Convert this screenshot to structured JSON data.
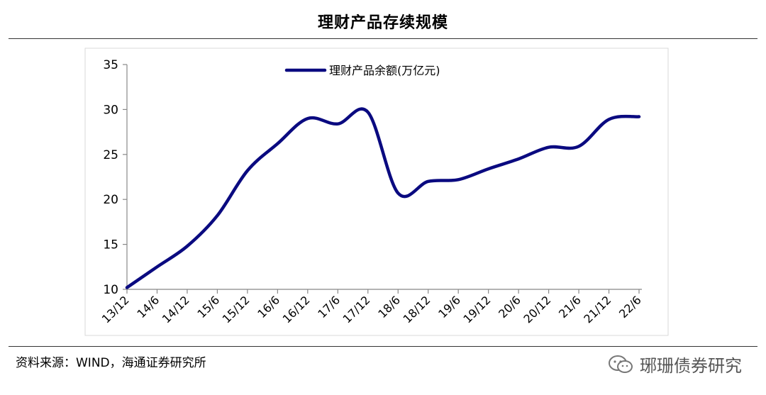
{
  "header": {
    "title": "理财产品存续规模"
  },
  "footer": {
    "source": "资料来源：WIND，海通证券研究所",
    "watermark": "琊珊债券研究"
  },
  "colors": {
    "series": "#0a0a80",
    "axis": "#888888"
  },
  "chart_data": {
    "type": "line",
    "title": "理财产品存续规模",
    "xlabel": "",
    "ylabel": "",
    "ylim": [
      10,
      35
    ],
    "yticks": [
      10,
      15,
      20,
      25,
      30,
      35
    ],
    "grid": false,
    "legend_position": "top-center",
    "categories": [
      "13/12",
      "14/6",
      "14/12",
      "15/6",
      "15/12",
      "16/6",
      "16/12",
      "17/6",
      "17/12",
      "18/6",
      "18/12",
      "19/6",
      "19/12",
      "20/6",
      "20/12",
      "21/6",
      "21/12",
      "22/6"
    ],
    "series": [
      {
        "name": "理财产品余额(万亿元)",
        "values": [
          10.2,
          12.5,
          14.8,
          18.2,
          23.2,
          26.2,
          29.0,
          28.4,
          29.7,
          20.7,
          22.0,
          22.2,
          23.4,
          24.5,
          25.8,
          25.9,
          28.9,
          29.2
        ]
      }
    ]
  }
}
